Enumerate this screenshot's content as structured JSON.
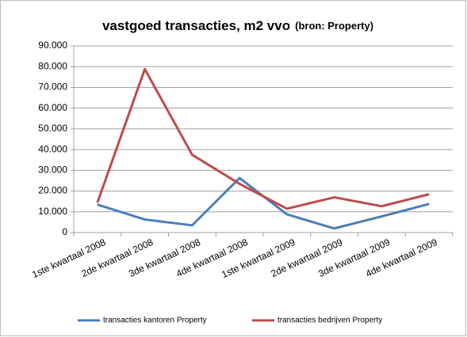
{
  "chart_data": {
    "type": "line",
    "title": "vastgoed transacties, m2 vvo",
    "subtitle": "(bron: Property)",
    "categories": [
      "1ste kwartaal 2008",
      "2de kwartaal 2008",
      "3de kwartaal 2008",
      "4de kwartaal 2008",
      "1ste kwartaal 2009",
      "2de kwartaal 2009",
      "3de kwartaal 2009",
      "4de kwartaal 2009"
    ],
    "series": [
      {
        "name": "transacties kantoren Property",
        "color": "#4a7ebb",
        "values": [
          13500,
          6300,
          3500,
          26300,
          8800,
          2000,
          7800,
          13800
        ]
      },
      {
        "name": "transacties bedrijven Property",
        "color": "#be4b48",
        "values": [
          14500,
          78800,
          37500,
          23500,
          11500,
          17000,
          12700,
          18500
        ]
      }
    ],
    "ylim": [
      0,
      90000
    ],
    "yticks": [
      0,
      {
        "value": 10000,
        "label": "10.000"
      },
      {
        "value": 20000,
        "label": "20.000"
      },
      {
        "value": 30000,
        "label": "30.000"
      },
      {
        "value": 40000,
        "label": "40.000"
      },
      {
        "value": 50000,
        "label": "50.000"
      },
      {
        "value": 60000,
        "label": "60.000"
      },
      {
        "value": 70000,
        "label": "70.000"
      },
      {
        "value": 80000,
        "label": "80.000"
      },
      {
        "value": 90000,
        "label": "90.000"
      }
    ],
    "grid": true,
    "legend": "bottom"
  }
}
